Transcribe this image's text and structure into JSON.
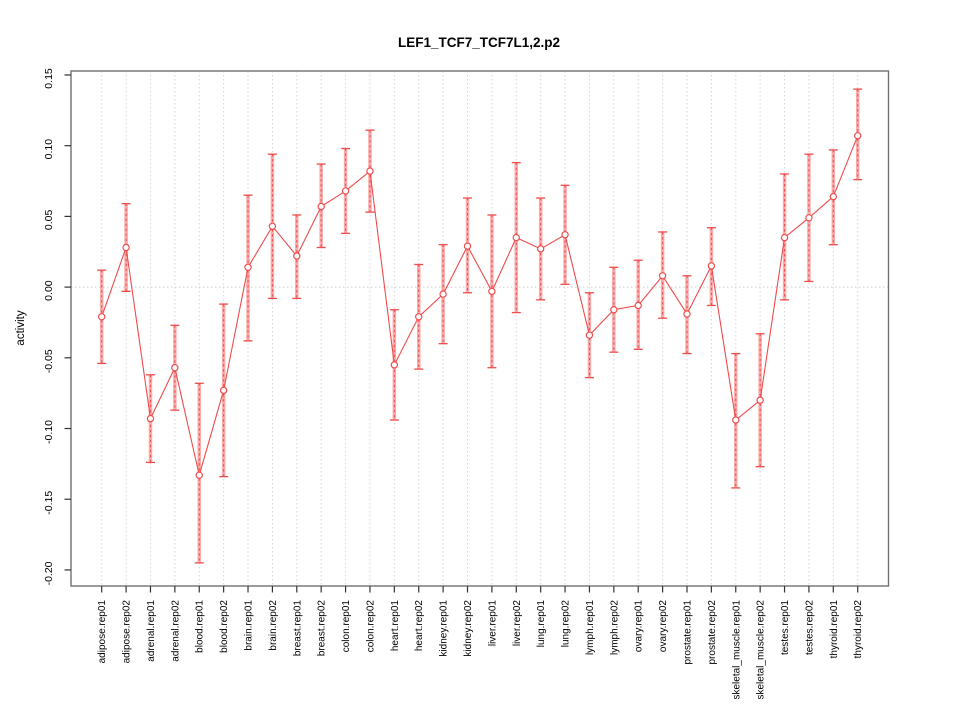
{
  "page": {
    "background": "#ffffff"
  },
  "chart_data": {
    "type": "line",
    "title": "LEF1_TCF7_TCF7L1,2.p2",
    "ylabel": "activity",
    "xlabel": "",
    "legend": "none",
    "grid": "vertical dotted gridline at every category; horizontal dotted line at y=0",
    "categories": [
      "adipose.rep01",
      "adipose.rep02",
      "adrenal.rep01",
      "adrenal.rep02",
      "blood.rep01",
      "blood.rep02",
      "brain.rep01",
      "brain.rep02",
      "breast.rep01",
      "breast.rep02",
      "colon.rep01",
      "colon.rep02",
      "heart.rep01",
      "heart.rep02",
      "kidney.rep01",
      "kidney.rep02",
      "liver.rep01",
      "liver.rep02",
      "lung.rep01",
      "lung.rep02",
      "lymph.rep01",
      "lymph.rep02",
      "ovary.rep01",
      "ovary.rep02",
      "prostate.rep01",
      "prostate.rep02",
      "skeletal_muscle.rep01",
      "skeletal_muscle.rep02",
      "testes.rep01",
      "testes.rep02",
      "thyroid.rep01",
      "thyroid.rep02"
    ],
    "series": [
      {
        "name": "activity",
        "values": [
          -0.021,
          0.028,
          -0.093,
          -0.057,
          -0.133,
          -0.073,
          0.014,
          0.043,
          0.022,
          0.057,
          0.068,
          0.082,
          -0.055,
          -0.021,
          -0.005,
          0.029,
          -0.003,
          0.035,
          0.027,
          0.037,
          -0.034,
          -0.016,
          -0.013,
          0.008,
          -0.019,
          0.015,
          -0.094,
          -0.08,
          0.035,
          0.049,
          0.064,
          0.107
        ],
        "err_hi": [
          0.012,
          0.059,
          -0.062,
          -0.027,
          -0.068,
          -0.012,
          0.065,
          0.094,
          0.051,
          0.087,
          0.098,
          0.111,
          -0.016,
          0.016,
          0.03,
          0.063,
          0.051,
          0.088,
          0.063,
          0.072,
          -0.004,
          0.014,
          0.019,
          0.039,
          0.008,
          0.042,
          -0.047,
          -0.033,
          0.08,
          0.094,
          0.097,
          0.14
        ],
        "err_lo": [
          -0.054,
          -0.003,
          -0.124,
          -0.087,
          -0.195,
          -0.134,
          -0.038,
          -0.008,
          -0.008,
          0.028,
          0.038,
          0.053,
          -0.094,
          -0.058,
          -0.04,
          -0.004,
          -0.057,
          -0.018,
          -0.009,
          0.002,
          -0.064,
          -0.046,
          -0.044,
          -0.022,
          -0.047,
          -0.013,
          -0.142,
          -0.127,
          -0.009,
          0.004,
          0.03,
          0.076
        ]
      }
    ],
    "ytick_labels": [
      "0.15",
      "0.10",
      "0.05",
      "0.00",
      "-0.05",
      "-0.10",
      "-0.15",
      "-0.20"
    ],
    "yticks": [
      0.15,
      0.1,
      0.05,
      0.0,
      -0.05,
      -0.1,
      -0.15,
      -0.2
    ],
    "ylim": [
      -0.2115,
      0.153
    ],
    "colors": {
      "line": "#ee4b4b",
      "marker_stroke": "#ee4b4b",
      "marker_fill": "#ffffff",
      "error_bar_band": "#f9abab",
      "error_bar_cap": "#ee4b4b",
      "gridline": "#d6d6d6",
      "zero_line": "#cfcfcf",
      "frame": "#707070",
      "tick": "#333333",
      "text": "#000000"
    }
  }
}
